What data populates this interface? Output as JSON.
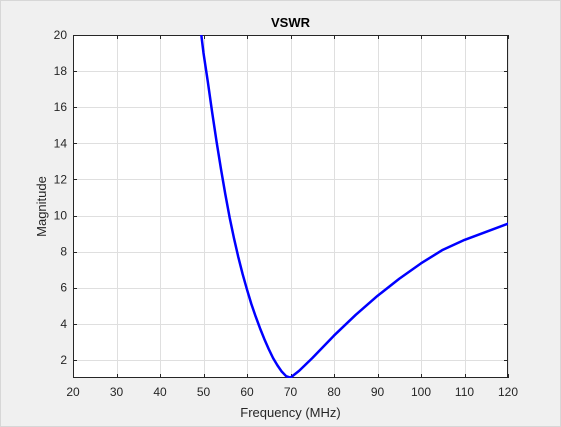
{
  "chart_data": {
    "type": "line",
    "title": "VSWR",
    "xlabel": "Frequency (MHz)",
    "ylabel": "Magnitude",
    "xlim": [
      20,
      120
    ],
    "ylim": [
      1,
      20
    ],
    "xticks": [
      20,
      30,
      40,
      50,
      60,
      70,
      80,
      90,
      100,
      110,
      120
    ],
    "yticks": [
      2,
      4,
      6,
      8,
      10,
      12,
      14,
      16,
      18,
      20
    ],
    "grid": true,
    "legend": false,
    "series": [
      {
        "color": "#0000ff",
        "x": [
          49.5,
          50,
          51,
          52,
          53,
          54,
          55,
          56,
          57,
          58,
          59,
          60,
          61,
          62,
          63,
          64,
          65,
          66,
          67,
          68,
          69,
          70,
          72,
          75,
          80,
          85,
          90,
          95,
          100,
          105,
          110,
          115,
          120
        ],
        "y": [
          20,
          19.0,
          17.4,
          15.7,
          14.1,
          12.6,
          11.2,
          9.9,
          8.75,
          7.7,
          6.75,
          5.9,
          5.1,
          4.4,
          3.75,
          3.15,
          2.6,
          2.1,
          1.7,
          1.35,
          1.1,
          1.02,
          1.4,
          2.1,
          3.35,
          4.5,
          5.55,
          6.5,
          7.35,
          8.1,
          8.65,
          9.1,
          9.55
        ]
      }
    ]
  }
}
